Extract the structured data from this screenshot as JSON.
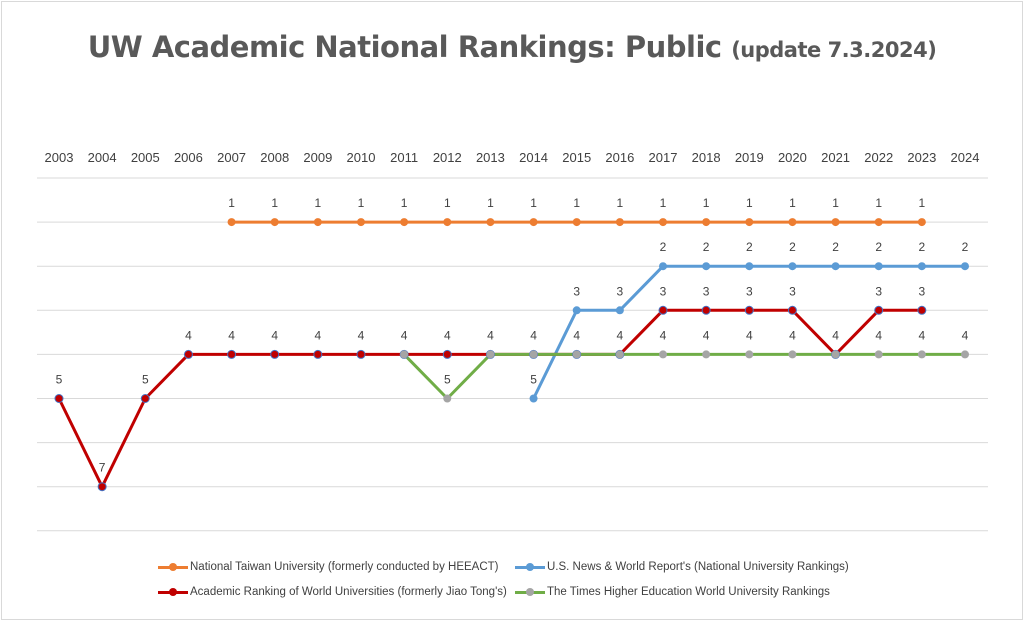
{
  "chart_data": {
    "type": "line",
    "title": "UW Academic National Rankings: Public",
    "subtitle": "(update 7.3.2024)",
    "x": [
      "2003",
      "2004",
      "2005",
      "2006",
      "2007",
      "2008",
      "2009",
      "2010",
      "2011",
      "2012",
      "2013",
      "2014",
      "2015",
      "2016",
      "2017",
      "2018",
      "2019",
      "2020",
      "2021",
      "2022",
      "2023",
      "2024"
    ],
    "xaxis_position": "top",
    "ylim": [
      0,
      8
    ],
    "y_inverted": true,
    "y_tick_labels_shown": false,
    "grid": true,
    "legend_position": "bottom",
    "series": [
      {
        "name": "National Taiwan University (formerly conducted by HEEACT)",
        "color": "#ed7d31",
        "marker": "#ed7d31",
        "values": [
          null,
          null,
          null,
          null,
          1,
          1,
          1,
          1,
          1,
          1,
          1,
          1,
          1,
          1,
          1,
          1,
          1,
          1,
          1,
          1,
          1,
          null
        ]
      },
      {
        "name": "U.S. News & World Report's (National University Rankings)",
        "color": "#5b9bd5",
        "marker": "#5b9bd5",
        "values": [
          null,
          null,
          null,
          null,
          null,
          null,
          null,
          null,
          null,
          null,
          null,
          5,
          3,
          3,
          2,
          2,
          2,
          2,
          2,
          2,
          2,
          2
        ]
      },
      {
        "name": "Academic Ranking of World Universities (formerly Jiao Tong's)",
        "color": "#c00000",
        "marker": "#c00000",
        "values": [
          5,
          7,
          5,
          4,
          4,
          4,
          4,
          4,
          4,
          4,
          4,
          4,
          4,
          4,
          3,
          3,
          3,
          3,
          4,
          3,
          3,
          null
        ]
      },
      {
        "name": "The Times Higher Education World University Rankings",
        "color": "#70ad47",
        "marker": "#a5a5a5",
        "values": [
          null,
          null,
          null,
          null,
          null,
          null,
          null,
          null,
          4,
          5,
          4,
          4,
          4,
          4,
          4,
          4,
          4,
          4,
          4,
          4,
          4,
          4
        ]
      }
    ]
  }
}
